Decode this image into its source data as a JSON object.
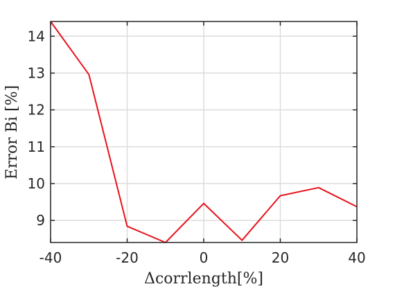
{
  "chart_data": {
    "type": "line",
    "title": "",
    "xlabel": "Δcorrlength[%]",
    "ylabel": "Error Bi [%]",
    "xlim": [
      -40,
      40
    ],
    "ylim": [
      8.4,
      14.4
    ],
    "xticks": [
      -40,
      -20,
      0,
      20,
      40
    ],
    "yticks": [
      9,
      10,
      11,
      12,
      13,
      14
    ],
    "xtick_labels": [
      "-40",
      "-20",
      "0",
      "20",
      "40"
    ],
    "ytick_labels": [
      "9",
      "10",
      "11",
      "12",
      "13",
      "14"
    ],
    "grid": true,
    "series": [
      {
        "color": "#e8101a",
        "x": [
          -40,
          -30,
          -20,
          -10,
          0,
          10,
          20,
          30,
          40
        ],
        "y": [
          14.4,
          12.96,
          8.84,
          8.4,
          9.46,
          8.46,
          9.67,
          9.89,
          9.37
        ]
      }
    ]
  }
}
